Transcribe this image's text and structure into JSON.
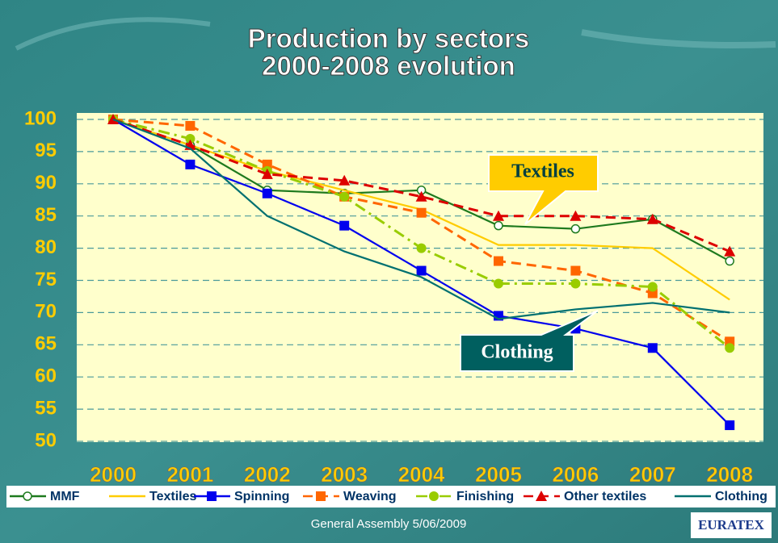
{
  "chart_data": {
    "type": "line",
    "title": "Production by sectors\n2000-2008 evolution",
    "categories": [
      "2000",
      "2001",
      "2002",
      "2003",
      "2004",
      "2005",
      "2006",
      "2007",
      "2008"
    ],
    "ylim": [
      50,
      100
    ],
    "yticks": [
      50,
      55,
      60,
      65,
      70,
      75,
      80,
      85,
      90,
      95,
      100
    ],
    "grid": true,
    "series": [
      {
        "name": "MMF",
        "color": "#1e7a1e",
        "marker": "open-circle",
        "dash": "solid",
        "values": [
          100,
          96,
          89,
          88.5,
          89,
          83.5,
          83,
          84.5,
          78
        ]
      },
      {
        "name": "Textiles",
        "color": "#ffcc00",
        "marker": "none",
        "dash": "solid",
        "values": [
          100,
          96,
          92,
          89,
          86,
          80.5,
          80.5,
          80,
          72
        ]
      },
      {
        "name": "Spinning",
        "color": "#0000ee",
        "marker": "square",
        "dash": "solid",
        "values": [
          100,
          93,
          88.5,
          83.5,
          76.5,
          69.5,
          67.5,
          64.5,
          52.5
        ]
      },
      {
        "name": "Weaving",
        "color": "#ff6600",
        "marker": "square",
        "dash": "dash",
        "values": [
          100,
          99,
          93,
          88,
          85.5,
          78,
          76.5,
          73,
          65.5
        ]
      },
      {
        "name": "Finishing",
        "color": "#99cc00",
        "marker": "circle",
        "dash": "dashdot",
        "values": [
          100,
          97,
          92,
          88,
          80,
          74.5,
          74.5,
          74,
          64.5
        ]
      },
      {
        "name": "Other textiles",
        "color": "#dd0000",
        "marker": "triangle",
        "dash": "dash",
        "values": [
          100,
          96,
          91.5,
          90.5,
          88,
          85,
          85,
          84.5,
          79.5
        ]
      },
      {
        "name": "Clothing",
        "color": "#007070",
        "marker": "none",
        "dash": "solid",
        "values": [
          100,
          95.5,
          85,
          79.5,
          75.5,
          69,
          70.5,
          71.5,
          70
        ]
      }
    ],
    "annotations": [
      "Textiles",
      "Clothing"
    ]
  },
  "footer": "General Assembly 5/06/2009",
  "logo": "EURATEX"
}
